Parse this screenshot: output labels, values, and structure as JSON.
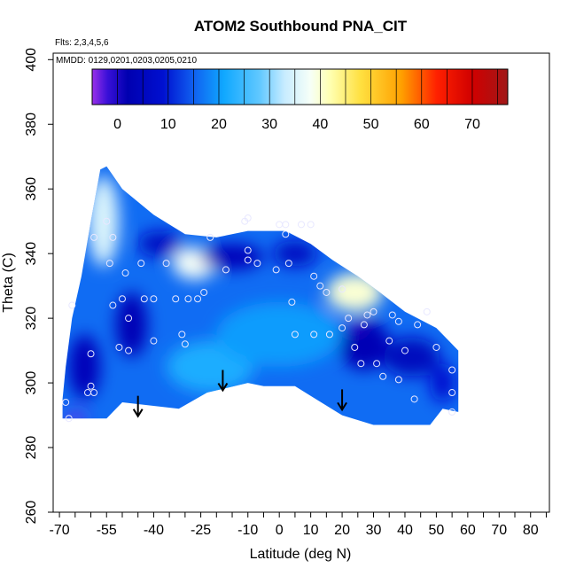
{
  "chart_data": {
    "type": "heatmap",
    "title": "ATOM2 Southbound PNA_CIT",
    "flights_note": "Flts: 2,3,4,5,6",
    "dates_note": "MMDD: 0129,0201,0203,0205,0210",
    "xlabel": "Latitude (deg N)",
    "ylabel": "Theta (C)",
    "xlim": [
      -72,
      86
    ],
    "ylim": [
      260,
      402
    ],
    "x_ticks": [
      -70,
      -55,
      -40,
      -25,
      -10,
      0,
      10,
      20,
      30,
      40,
      50,
      60,
      70,
      80
    ],
    "y_ticks": [
      260,
      280,
      300,
      320,
      340,
      360,
      380,
      400
    ],
    "colorbar": {
      "range": [
        -5,
        77
      ],
      "ticks": [
        0,
        10,
        20,
        30,
        40,
        50,
        60,
        70
      ],
      "stops": [
        {
          "v": -5,
          "c": "#9a30e8"
        },
        {
          "v": -2,
          "c": "#3a10d8"
        },
        {
          "v": 2,
          "c": "#0000b0"
        },
        {
          "v": 9,
          "c": "#0010d0"
        },
        {
          "v": 15,
          "c": "#1060f0"
        },
        {
          "v": 21,
          "c": "#10a8ff"
        },
        {
          "v": 28,
          "c": "#60c8ff"
        },
        {
          "v": 33,
          "c": "#c8ecff"
        },
        {
          "v": 38,
          "c": "#f6fff8"
        },
        {
          "v": 42,
          "c": "#ffffb0"
        },
        {
          "v": 48,
          "c": "#ffe040"
        },
        {
          "v": 56,
          "c": "#ffa000"
        },
        {
          "v": 63,
          "c": "#ff2000"
        },
        {
          "v": 70,
          "c": "#d00000"
        },
        {
          "v": 77,
          "c": "#a01818"
        }
      ]
    },
    "base_value": 16,
    "field_outline": [
      [
        -69,
        289
      ],
      [
        -55,
        289
      ],
      [
        -50,
        294
      ],
      [
        -32,
        292
      ],
      [
        -23,
        297
      ],
      [
        -10,
        300
      ],
      [
        -5,
        299
      ],
      [
        5,
        299
      ],
      [
        10,
        296
      ],
      [
        20,
        290
      ],
      [
        30,
        287
      ],
      [
        48,
        287
      ],
      [
        52,
        292
      ],
      [
        57,
        291
      ],
      [
        57,
        310
      ],
      [
        50,
        317
      ],
      [
        40,
        322
      ],
      [
        32,
        328
      ],
      [
        25,
        333
      ],
      [
        17,
        338
      ],
      [
        10,
        343
      ],
      [
        2,
        347
      ],
      [
        -10,
        347
      ],
      [
        -20,
        345
      ],
      [
        -30,
        346
      ],
      [
        -40,
        352
      ],
      [
        -50,
        360
      ],
      [
        -55,
        367
      ],
      [
        -57,
        366
      ],
      [
        -60,
        350
      ],
      [
        -63,
        333
      ],
      [
        -66,
        320
      ],
      [
        -68,
        305
      ],
      [
        -69,
        295
      ]
    ],
    "field_anomalies": [
      {
        "x": -56,
        "y": 350,
        "rx": 5,
        "ry": 14,
        "v": 35
      },
      {
        "x": -27,
        "y": 337,
        "rx": 7,
        "ry": 5,
        "v": 38
      },
      {
        "x": 24,
        "y": 328,
        "rx": 9,
        "ry": 6,
        "v": 40
      },
      {
        "x": -62,
        "y": 305,
        "rx": 5,
        "ry": 10,
        "v": 4
      },
      {
        "x": -47,
        "y": 318,
        "rx": 5,
        "ry": 10,
        "v": 3
      },
      {
        "x": -15,
        "y": 339,
        "rx": 10,
        "ry": 4,
        "v": 4
      },
      {
        "x": -38,
        "y": 343,
        "rx": 7,
        "ry": 4,
        "v": 6
      },
      {
        "x": 5,
        "y": 340,
        "rx": 7,
        "ry": 4,
        "v": 6
      },
      {
        "x": 27,
        "y": 312,
        "rx": 8,
        "ry": 8,
        "v": 3
      },
      {
        "x": 42,
        "y": 308,
        "rx": 9,
        "ry": 6,
        "v": 5
      },
      {
        "x": 52,
        "y": 300,
        "rx": 4,
        "ry": 6,
        "v": 9
      },
      {
        "x": -65,
        "y": 289,
        "rx": 4,
        "ry": 1.5,
        "v": -4
      },
      {
        "x": 24,
        "y": 318,
        "rx": 2,
        "ry": 1,
        "v": -3
      },
      {
        "x": -22,
        "y": 305,
        "rx": 14,
        "ry": 8,
        "v": 22
      },
      {
        "x": 0,
        "y": 315,
        "rx": 20,
        "ry": 10,
        "v": 20
      }
    ],
    "sample_points": [
      [
        -68,
        294
      ],
      [
        -67,
        289
      ],
      [
        -61,
        297
      ],
      [
        -60,
        299
      ],
      [
        -59,
        297
      ],
      [
        -60,
        309
      ],
      [
        -66,
        324
      ],
      [
        -59,
        345
      ],
      [
        -55,
        350
      ],
      [
        -54,
        337
      ],
      [
        -53,
        345
      ],
      [
        -53,
        324
      ],
      [
        -50,
        326
      ],
      [
        -49,
        334
      ],
      [
        -48,
        320
      ],
      [
        -51,
        311
      ],
      [
        -48,
        310
      ],
      [
        -44,
        337
      ],
      [
        -43,
        326
      ],
      [
        -40,
        326
      ],
      [
        -40,
        313
      ],
      [
        -36,
        337
      ],
      [
        -33,
        326
      ],
      [
        -31,
        315
      ],
      [
        -30,
        312
      ],
      [
        -29,
        326
      ],
      [
        -26,
        326
      ],
      [
        -24,
        328
      ],
      [
        -22,
        345
      ],
      [
        -17,
        335
      ],
      [
        -10,
        341
      ],
      [
        -10,
        338
      ],
      [
        -10,
        351
      ],
      [
        -11,
        350
      ],
      [
        -7,
        337
      ],
      [
        -1,
        335
      ],
      [
        0,
        349
      ],
      [
        2,
        349
      ],
      [
        2,
        346
      ],
      [
        3,
        337
      ],
      [
        4,
        325
      ],
      [
        5,
        315
      ],
      [
        7,
        349
      ],
      [
        10,
        349
      ],
      [
        11,
        333
      ],
      [
        11,
        315
      ],
      [
        13,
        330
      ],
      [
        15,
        328
      ],
      [
        16,
        315
      ],
      [
        20,
        317
      ],
      [
        22,
        320
      ],
      [
        20,
        329
      ],
      [
        24,
        311
      ],
      [
        26,
        306
      ],
      [
        27,
        318
      ],
      [
        28,
        321
      ],
      [
        30,
        322
      ],
      [
        31,
        306
      ],
      [
        33,
        302
      ],
      [
        35,
        313
      ],
      [
        36,
        321
      ],
      [
        38,
        301
      ],
      [
        38,
        319
      ],
      [
        40,
        310
      ],
      [
        43,
        295
      ],
      [
        44,
        318
      ],
      [
        47,
        322
      ],
      [
        50,
        311
      ],
      [
        55,
        304
      ],
      [
        55,
        297
      ],
      [
        55,
        291
      ]
    ],
    "arrows_at_x": [
      -45,
      -18,
      20
    ]
  }
}
